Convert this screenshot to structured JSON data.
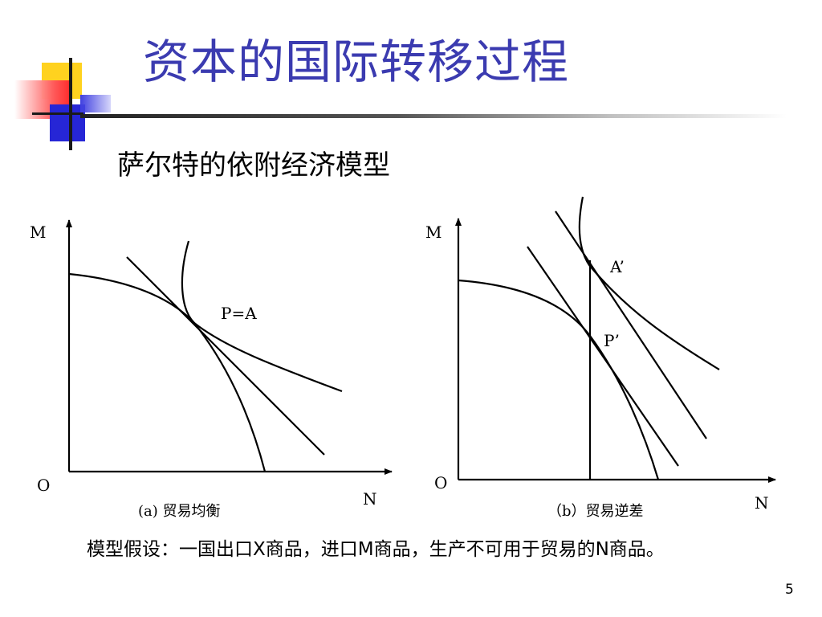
{
  "slide": {
    "title": "资本的国际转移过程",
    "subtitle": "萨尔特的依附经济模型",
    "assumption": "模型假设：一国出口X商品，进口M商品，生产不可用于贸易的N商品。",
    "page_number": "5"
  },
  "diagram_a": {
    "axis_y_label": "M",
    "axis_x_label": "N",
    "origin_label": "O",
    "point_label": "P=A",
    "caption": "(a) 贸易均衡"
  },
  "diagram_b": {
    "axis_y_label": "M",
    "axis_x_label": "N",
    "origin_label": "O",
    "point_a_label": "A’",
    "point_p_label": "P’",
    "caption": "（b）贸易逆差"
  },
  "colors": {
    "title": "#3b3bb0",
    "deco_yellow": "#ffd21f",
    "deco_red": "#ff3a3a",
    "deco_blue": "#2626d6"
  }
}
